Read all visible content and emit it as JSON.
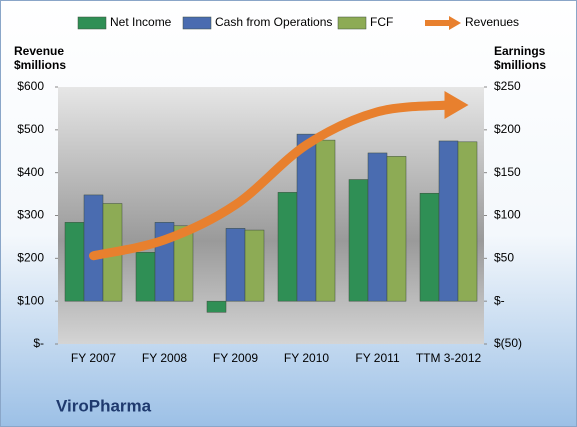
{
  "chart_data": {
    "type": "bar",
    "title": "ViroPharma",
    "ylabel": [
      "Revenue",
      "$millions"
    ],
    "y2label": [
      "Earnings",
      "$millions"
    ],
    "categories": [
      "FY 2007",
      "FY 2008",
      "FY 2009",
      "FY 2010",
      "FY 2011",
      "TTM 3-2012"
    ],
    "series": [
      {
        "name": "Net Income",
        "color": "#2f8f55",
        "axis": "y2",
        "values": [
          92,
          57,
          -13,
          127,
          142,
          126
        ]
      },
      {
        "name": "Cash from Operations",
        "color": "#4a6cb0",
        "axis": "y2",
        "values": [
          124,
          92,
          85,
          195,
          173,
          187
        ]
      },
      {
        "name": "FCF",
        "color": "#8dab55",
        "axis": "y2",
        "values": [
          114,
          88,
          83,
          188,
          169,
          186
        ]
      },
      {
        "name": "Revenues",
        "color": "#e8802e",
        "type": "line",
        "values": [
          206,
          243,
          325,
          465,
          542,
          558
        ]
      }
    ],
    "ylim": [
      0,
      600
    ],
    "yticks": [
      {
        "value": 0,
        "label": "$-"
      },
      {
        "value": 100,
        "label": "$100"
      },
      {
        "value": 200,
        "label": "$200"
      },
      {
        "value": 300,
        "label": "$300"
      },
      {
        "value": 400,
        "label": "$400"
      },
      {
        "value": 500,
        "label": "$500"
      },
      {
        "value": 600,
        "label": "$600"
      }
    ],
    "y2lim": [
      -50,
      250
    ],
    "y2ticks": [
      {
        "value": -50,
        "label": "$(50)"
      },
      {
        "value": 0,
        "label": "$-"
      },
      {
        "value": 50,
        "label": "$50"
      },
      {
        "value": 100,
        "label": "$100"
      },
      {
        "value": 150,
        "label": "$150"
      },
      {
        "value": 200,
        "label": "$200"
      },
      {
        "value": 250,
        "label": "$250"
      }
    ],
    "grid": false
  }
}
